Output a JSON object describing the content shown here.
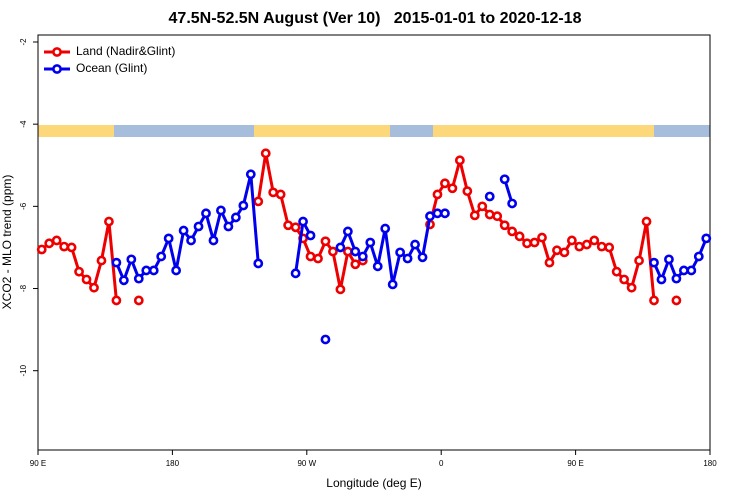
{
  "chart_data": {
    "type": "line",
    "title": "47.5N-52.5N August (Ver 10)   2015-01-01 to 2020-12-18",
    "xlabel": "Longitude (deg E)",
    "ylabel": "XCO2 - MLO trend (ppm)",
    "xlim": [
      90,
      540
    ],
    "ylim": [
      -11.93,
      -1.83
    ],
    "xticks": [
      {
        "value": 90,
        "label": "90 E"
      },
      {
        "value": 180,
        "label": "180"
      },
      {
        "value": 270,
        "label": "90 W"
      },
      {
        "value": 360,
        "label": "0"
      },
      {
        "value": 450,
        "label": "90 E"
      },
      {
        "value": 540,
        "label": "180"
      }
    ],
    "yticks": [
      -2,
      -4,
      -6,
      -8,
      -10
    ],
    "grid": false,
    "legend": "upper-left",
    "x": [
      92.5,
      97.5,
      102.5,
      107.5,
      112.5,
      117.5,
      122.5,
      127.5,
      132.5,
      137.5,
      142.5,
      147.5,
      152.5,
      157.5,
      162.5,
      167.5,
      172.5,
      177.5,
      182.5,
      187.5,
      192.5,
      197.5,
      202.5,
      207.5,
      212.5,
      217.5,
      222.5,
      227.5,
      232.5,
      237.5,
      242.5,
      247.5,
      252.5,
      257.5,
      262.5,
      267.5,
      272.5,
      277.5,
      282.5,
      287.5,
      292.5,
      297.5,
      302.5,
      307.5,
      312.5,
      317.5,
      322.5,
      327.5,
      332.5,
      337.5,
      342.5,
      347.5,
      352.5,
      357.5,
      362.5,
      367.5,
      372.5,
      377.5,
      382.5,
      387.5,
      392.5,
      397.5,
      402.5,
      407.5,
      412.5,
      417.5,
      422.5,
      427.5,
      432.5,
      437.5,
      442.5,
      447.5,
      452.5,
      457.5,
      462.5,
      467.5,
      472.5,
      477.5,
      482.5,
      487.5,
      492.5,
      497.5,
      502.5,
      507.5,
      512.5,
      517.5,
      522.5,
      527.5,
      532.5,
      537.5
    ],
    "series": [
      {
        "name": "Land (Nadir&Glint)",
        "color": "#ee0000",
        "values": [
          -7.05,
          -6.9,
          -6.83,
          -6.98,
          -7.0,
          -7.59,
          -7.78,
          -7.98,
          -7.32,
          -6.37,
          -8.29,
          null,
          null,
          -8.29,
          null,
          null,
          null,
          null,
          null,
          null,
          null,
          null,
          null,
          null,
          null,
          null,
          null,
          null,
          null,
          -5.88,
          -4.71,
          -5.66,
          -5.71,
          -6.46,
          -6.51,
          -6.78,
          -7.22,
          -7.27,
          -6.85,
          -7.1,
          -8.02,
          -7.1,
          -7.41,
          -7.32,
          null,
          null,
          null,
          null,
          null,
          null,
          null,
          null,
          -6.44,
          -5.71,
          -5.44,
          -5.56,
          -4.88,
          -5.63,
          -6.22,
          -6.0,
          -6.2,
          -6.24,
          -6.46,
          -6.61,
          -6.73,
          -6.9,
          -6.88,
          -6.76,
          -7.37,
          -7.07,
          -7.12,
          -6.83,
          -6.98,
          -6.93,
          -6.83,
          -6.98,
          -7.0,
          -7.59,
          -7.78,
          -7.98,
          -7.32,
          -6.37,
          -8.29,
          null,
          null,
          -8.29,
          null,
          null,
          null,
          null
        ]
      },
      {
        "name": "Ocean (Glint)",
        "color": "#0000ee",
        "values": [
          null,
          null,
          null,
          null,
          null,
          null,
          null,
          null,
          null,
          null,
          -7.37,
          -7.8,
          -7.29,
          -7.76,
          -7.56,
          -7.56,
          -7.22,
          -6.78,
          -7.56,
          -6.59,
          -6.83,
          -6.49,
          -6.17,
          -6.83,
          -6.1,
          -6.49,
          -6.27,
          -5.98,
          -5.22,
          -7.39,
          null,
          null,
          null,
          null,
          -7.63,
          -6.37,
          -6.71,
          null,
          -9.24,
          null,
          -7.0,
          -6.61,
          -7.1,
          -7.22,
          -6.88,
          -7.46,
          -6.54,
          -7.9,
          -7.12,
          -7.27,
          -6.93,
          -7.24,
          -6.24,
          -6.17,
          -6.17,
          null,
          null,
          null,
          null,
          null,
          -5.76,
          null,
          -5.34,
          -5.93,
          null,
          null,
          null,
          null,
          null,
          null,
          null,
          null,
          null,
          null,
          null,
          null,
          null,
          null,
          null,
          null,
          null,
          null,
          -7.37,
          -7.78,
          -7.29,
          -7.76,
          -7.56,
          -7.56,
          -7.22,
          -6.78
        ]
      }
    ]
  }
}
